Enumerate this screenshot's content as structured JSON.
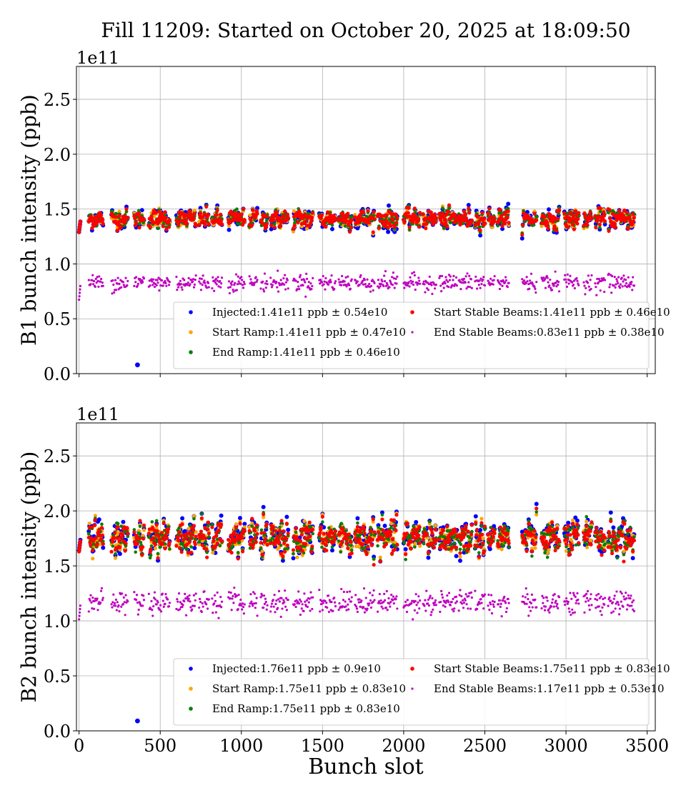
{
  "chart_data": {
    "title": "Fill 11209: Started on October 20, 2025 at 18:09:50",
    "xlabel": "Bunch slot",
    "grid": true,
    "legend_placement": "lower-right",
    "colors": {
      "Injected": "#0000ff",
      "Start Ramp": "#ffa500",
      "End Ramp": "#008000",
      "Start Stable Beams": "#ff0000",
      "End Stable Beams": "#bf00bf"
    },
    "bunch_trains_slots": [
      [
        60,
        150
      ],
      [
        200,
        300
      ],
      [
        340,
        400
      ],
      [
        430,
        560
      ],
      [
        600,
        720
      ],
      [
        740,
        800
      ],
      [
        820,
        880
      ],
      [
        920,
        1020
      ],
      [
        1050,
        1100
      ],
      [
        1120,
        1160
      ],
      [
        1180,
        1290
      ],
      [
        1320,
        1440
      ],
      [
        1480,
        1580
      ],
      [
        1600,
        1680
      ],
      [
        1700,
        1820
      ],
      [
        1840,
        1960
      ],
      [
        2000,
        2100
      ],
      [
        2120,
        2200
      ],
      [
        2220,
        2330
      ],
      [
        2340,
        2420
      ],
      [
        2440,
        2500
      ],
      [
        2520,
        2560
      ],
      [
        2580,
        2650
      ],
      [
        2730,
        2820
      ],
      [
        2850,
        2960
      ],
      [
        2990,
        3080
      ],
      [
        3110,
        3160
      ],
      [
        3180,
        3240
      ],
      [
        3260,
        3420
      ]
    ],
    "panels": [
      {
        "type": "scatter",
        "ylabel": "B1 bunch intensity (ppb)",
        "y_multiplier": "1e11",
        "xlim": [
          -16,
          3550
        ],
        "ylim": [
          0,
          2.8
        ],
        "xticks": [
          0,
          500,
          1000,
          1500,
          2000,
          2500,
          3000,
          3500
        ],
        "xtick_labels_shown": false,
        "yticks": [
          0.0,
          0.5,
          1.0,
          1.5,
          2.0,
          2.5
        ],
        "ytick_labels": [
          "0.0",
          "0.5",
          "1.0",
          "1.5",
          "2.0",
          "2.5"
        ],
        "series": [
          {
            "name": "Injected",
            "legend": "Injected:1.41e11 ppb ± 0.54e10",
            "mean": 1.41,
            "std": 0.054,
            "outliers": [
              [
                360,
                0.08
              ]
            ]
          },
          {
            "name": "Start Ramp",
            "legend": "Start Ramp:1.41e11 ppb ± 0.47e10",
            "mean": 1.41,
            "std": 0.047
          },
          {
            "name": "End Ramp",
            "legend": "End Ramp:1.41e11 ppb ± 0.46e10",
            "mean": 1.41,
            "std": 0.046
          },
          {
            "name": "Start Stable Beams",
            "legend": "Start Stable Beams:1.41e11 ppb ± 0.46e10",
            "mean": 1.41,
            "std": 0.046
          },
          {
            "name": "End Stable Beams",
            "legend": "End Stable Beams:0.83e11 ppb ± 0.38e10",
            "mean": 0.83,
            "std": 0.038
          }
        ]
      },
      {
        "type": "scatter",
        "ylabel": "B2 bunch intensity (ppb)",
        "y_multiplier": "1e11",
        "xlim": [
          -16,
          3550
        ],
        "ylim": [
          0,
          2.8
        ],
        "xticks": [
          0,
          500,
          1000,
          1500,
          2000,
          2500,
          3000,
          3500
        ],
        "xtick_labels": [
          "0",
          "500",
          "1000",
          "1500",
          "2000",
          "2500",
          "3000",
          "3500"
        ],
        "yticks": [
          0.0,
          0.5,
          1.0,
          1.5,
          2.0,
          2.5
        ],
        "ytick_labels": [
          "0.0",
          "0.5",
          "1.0",
          "1.5",
          "2.0",
          "2.5"
        ],
        "series": [
          {
            "name": "Injected",
            "legend": "Injected:1.76e11 ppb ± 0.9e10",
            "mean": 1.76,
            "std": 0.09,
            "outliers": [
              [
                360,
                0.09
              ]
            ]
          },
          {
            "name": "Start Ramp",
            "legend": "Start Ramp:1.75e11 ppb ± 0.83e10",
            "mean": 1.75,
            "std": 0.083
          },
          {
            "name": "End Ramp",
            "legend": "End Ramp:1.75e11 ppb ± 0.83e10",
            "mean": 1.75,
            "std": 0.083
          },
          {
            "name": "Start Stable Beams",
            "legend": "Start Stable Beams:1.75e11 ppb ± 0.83e10",
            "mean": 1.75,
            "std": 0.083
          },
          {
            "name": "End Stable Beams",
            "legend": "End Stable Beams:1.17e11 ppb ± 0.53e10",
            "mean": 1.17,
            "std": 0.053
          }
        ]
      }
    ]
  }
}
